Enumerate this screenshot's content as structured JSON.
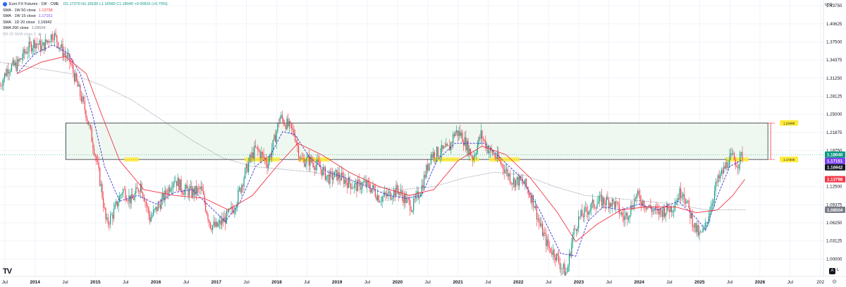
{
  "legend": {
    "symbol": "Euro FX Futures · 1W · CME",
    "ohlc": "O1.17270 H1.18100 L1.16560 C1.18040 +0.00815 (+0.70%)",
    "indicators": [
      {
        "name": "SMA · 1W 50 close",
        "value": "1.13798",
        "color": "#f23645"
      },
      {
        "name": "SMA · 1W 15 close",
        "value": "1.17151",
        "color": "#7b3ff2"
      },
      {
        "name": "SMA · 1D 20 close",
        "value": "1.16942",
        "color": "#131722"
      },
      {
        "name": "SMA 200 close",
        "value": "1.08504",
        "color": "#787b86"
      },
      {
        "name": "BB 20 SMA close 2",
        "value": "",
        "color": "#b2b5be"
      }
    ]
  },
  "currency": "USD",
  "tv_logo": "TV",
  "corner": {
    "auto_label": "A",
    "log_label": "L"
  },
  "chart_data": {
    "type": "candlestick",
    "title": "Euro FX Futures · 1W · CME",
    "xlabel": "",
    "ylabel": "",
    "ylim": [
      0.9,
      1.45
    ],
    "y_ticks": [
      0.9375,
      0.96875,
      1.0,
      1.03125,
      1.0625,
      1.09375,
      1.125,
      1.15625,
      1.1875,
      1.21875,
      1.25,
      1.28125,
      1.3125,
      1.34375,
      1.375,
      1.40625,
      1.4375
    ],
    "y_tick_labels": [
      "0.93750",
      "0.96875",
      "1.00000",
      "1.03125",
      "1.06250",
      "1.09375",
      "1.12500",
      "1.15625",
      "1.18750",
      "1.21875",
      "1.25000",
      "1.28125",
      "1.31250",
      "1.34375",
      "1.37500",
      "1.40625",
      "1.43750"
    ],
    "x_range": [
      2013.42,
      2027.05
    ],
    "x_ticks": [
      {
        "t": 2013.5,
        "label": "Jul"
      },
      {
        "t": 2014.0,
        "label": "2014"
      },
      {
        "t": 2014.5,
        "label": "Jul"
      },
      {
        "t": 2015.0,
        "label": "2015"
      },
      {
        "t": 2015.5,
        "label": "Jul"
      },
      {
        "t": 2016.0,
        "label": "2016"
      },
      {
        "t": 2016.5,
        "label": "Jul"
      },
      {
        "t": 2017.0,
        "label": "2017"
      },
      {
        "t": 2017.5,
        "label": "Jul"
      },
      {
        "t": 2018.0,
        "label": "2018"
      },
      {
        "t": 2018.5,
        "label": "Jul"
      },
      {
        "t": 2019.0,
        "label": "2019"
      },
      {
        "t": 2019.5,
        "label": "Jul"
      },
      {
        "t": 2020.0,
        "label": "2020"
      },
      {
        "t": 2020.5,
        "label": "Jul"
      },
      {
        "t": 2021.0,
        "label": "2021"
      },
      {
        "t": 2021.5,
        "label": "Jul"
      },
      {
        "t": 2022.0,
        "label": "2022"
      },
      {
        "t": 2022.5,
        "label": "Jul"
      },
      {
        "t": 2023.0,
        "label": "2023"
      },
      {
        "t": 2023.5,
        "label": "Jul"
      },
      {
        "t": 2024.0,
        "label": "2024"
      },
      {
        "t": 2024.5,
        "label": "Jul"
      },
      {
        "t": 2025.0,
        "label": "2025"
      },
      {
        "t": 2025.5,
        "label": "Jul"
      },
      {
        "t": 2026.0,
        "label": "2026"
      },
      {
        "t": 2026.5,
        "label": "Jul"
      },
      {
        "t": 2027.0,
        "label": "202"
      }
    ],
    "price_path": [
      [
        2013.42,
        1.3
      ],
      [
        2013.55,
        1.33
      ],
      [
        2013.7,
        1.335
      ],
      [
        2013.85,
        1.36
      ],
      [
        2014.0,
        1.375
      ],
      [
        2014.12,
        1.365
      ],
      [
        2014.3,
        1.39
      ],
      [
        2014.45,
        1.36
      ],
      [
        2014.58,
        1.34
      ],
      [
        2014.7,
        1.3
      ],
      [
        2014.85,
        1.25
      ],
      [
        2015.0,
        1.18
      ],
      [
        2015.1,
        1.12
      ],
      [
        2015.18,
        1.06
      ],
      [
        2015.3,
        1.08
      ],
      [
        2015.45,
        1.12
      ],
      [
        2015.6,
        1.1
      ],
      [
        2015.75,
        1.13
      ],
      [
        2015.9,
        1.07
      ],
      [
        2016.0,
        1.085
      ],
      [
        2016.15,
        1.11
      ],
      [
        2016.3,
        1.14
      ],
      [
        2016.45,
        1.12
      ],
      [
        2016.6,
        1.115
      ],
      [
        2016.75,
        1.12
      ],
      [
        2016.9,
        1.06
      ],
      [
        2017.0,
        1.055
      ],
      [
        2017.15,
        1.07
      ],
      [
        2017.3,
        1.09
      ],
      [
        2017.45,
        1.14
      ],
      [
        2017.55,
        1.17
      ],
      [
        2017.65,
        1.19
      ],
      [
        2017.75,
        1.18
      ],
      [
        2017.85,
        1.165
      ],
      [
        2017.95,
        1.2
      ],
      [
        2018.05,
        1.245
      ],
      [
        2018.15,
        1.235
      ],
      [
        2018.3,
        1.215
      ],
      [
        2018.4,
        1.17
      ],
      [
        2018.55,
        1.17
      ],
      [
        2018.7,
        1.16
      ],
      [
        2018.85,
        1.14
      ],
      [
        2019.0,
        1.145
      ],
      [
        2019.15,
        1.135
      ],
      [
        2019.3,
        1.125
      ],
      [
        2019.45,
        1.13
      ],
      [
        2019.6,
        1.12
      ],
      [
        2019.7,
        1.105
      ],
      [
        2019.85,
        1.11
      ],
      [
        2020.0,
        1.12
      ],
      [
        2020.15,
        1.1
      ],
      [
        2020.25,
        1.09
      ],
      [
        2020.4,
        1.125
      ],
      [
        2020.55,
        1.18
      ],
      [
        2020.7,
        1.185
      ],
      [
        2020.85,
        1.19
      ],
      [
        2020.95,
        1.22
      ],
      [
        2021.05,
        1.215
      ],
      [
        2021.15,
        1.195
      ],
      [
        2021.25,
        1.175
      ],
      [
        2021.38,
        1.215
      ],
      [
        2021.5,
        1.19
      ],
      [
        2021.6,
        1.18
      ],
      [
        2021.75,
        1.16
      ],
      [
        2021.9,
        1.135
      ],
      [
        2022.0,
        1.135
      ],
      [
        2022.1,
        1.13
      ],
      [
        2022.25,
        1.1
      ],
      [
        2022.35,
        1.06
      ],
      [
        2022.5,
        1.02
      ],
      [
        2022.6,
        1.01
      ],
      [
        2022.72,
        0.985
      ],
      [
        2022.8,
        0.975
      ],
      [
        2022.9,
        1.04
      ],
      [
        2023.0,
        1.07
      ],
      [
        2023.1,
        1.08
      ],
      [
        2023.25,
        1.095
      ],
      [
        2023.35,
        1.1
      ],
      [
        2023.5,
        1.1
      ],
      [
        2023.6,
        1.095
      ],
      [
        2023.75,
        1.07
      ],
      [
        2023.85,
        1.085
      ],
      [
        2023.95,
        1.11
      ],
      [
        2024.05,
        1.1
      ],
      [
        2024.15,
        1.09
      ],
      [
        2024.3,
        1.08
      ],
      [
        2024.45,
        1.085
      ],
      [
        2024.55,
        1.09
      ],
      [
        2024.65,
        1.11
      ],
      [
        2024.72,
        1.12
      ],
      [
        2024.82,
        1.085
      ],
      [
        2024.92,
        1.055
      ],
      [
        2025.0,
        1.04
      ],
      [
        2025.08,
        1.05
      ],
      [
        2025.18,
        1.09
      ],
      [
        2025.28,
        1.13
      ],
      [
        2025.38,
        1.15
      ],
      [
        2025.48,
        1.17
      ],
      [
        2025.55,
        1.175
      ],
      [
        2025.62,
        1.165
      ],
      [
        2025.7,
        1.18
      ]
    ],
    "series": [
      {
        "name": "SMA 1W 15 close",
        "color": "#3d36d9",
        "dash": "3,1.5",
        "points": [
          [
            2013.7,
            1.32
          ],
          [
            2014.0,
            1.355
          ],
          [
            2014.3,
            1.37
          ],
          [
            2014.55,
            1.355
          ],
          [
            2014.75,
            1.32
          ],
          [
            2014.95,
            1.25
          ],
          [
            2015.15,
            1.16
          ],
          [
            2015.4,
            1.1
          ],
          [
            2015.7,
            1.11
          ],
          [
            2016.0,
            1.095
          ],
          [
            2016.3,
            1.115
          ],
          [
            2016.6,
            1.12
          ],
          [
            2016.9,
            1.09
          ],
          [
            2017.15,
            1.065
          ],
          [
            2017.4,
            1.1
          ],
          [
            2017.65,
            1.16
          ],
          [
            2017.9,
            1.18
          ],
          [
            2018.1,
            1.22
          ],
          [
            2018.3,
            1.215
          ],
          [
            2018.55,
            1.175
          ],
          [
            2018.85,
            1.15
          ],
          [
            2019.15,
            1.14
          ],
          [
            2019.5,
            1.125
          ],
          [
            2019.85,
            1.11
          ],
          [
            2020.15,
            1.105
          ],
          [
            2020.4,
            1.11
          ],
          [
            2020.65,
            1.17
          ],
          [
            2020.95,
            1.2
          ],
          [
            2021.15,
            1.2
          ],
          [
            2021.45,
            1.2
          ],
          [
            2021.75,
            1.17
          ],
          [
            2022.05,
            1.14
          ],
          [
            2022.35,
            1.085
          ],
          [
            2022.7,
            1.01
          ],
          [
            2022.95,
            1.005
          ],
          [
            2023.15,
            1.065
          ],
          [
            2023.4,
            1.09
          ],
          [
            2023.7,
            1.085
          ],
          [
            2024.0,
            1.095
          ],
          [
            2024.3,
            1.085
          ],
          [
            2024.65,
            1.1
          ],
          [
            2024.95,
            1.07
          ],
          [
            2025.1,
            1.05
          ],
          [
            2025.3,
            1.11
          ],
          [
            2025.5,
            1.16
          ],
          [
            2025.7,
            1.171
          ]
        ]
      },
      {
        "name": "SMA 1W 50 close",
        "color": "#f23645",
        "dash": "",
        "points": [
          [
            2013.7,
            1.32
          ],
          [
            2014.1,
            1.34
          ],
          [
            2014.5,
            1.35
          ],
          [
            2014.85,
            1.32
          ],
          [
            2015.1,
            1.25
          ],
          [
            2015.4,
            1.17
          ],
          [
            2015.8,
            1.12
          ],
          [
            2016.3,
            1.11
          ],
          [
            2016.8,
            1.105
          ],
          [
            2017.2,
            1.085
          ],
          [
            2017.6,
            1.11
          ],
          [
            2018.0,
            1.16
          ],
          [
            2018.35,
            1.2
          ],
          [
            2018.75,
            1.18
          ],
          [
            2019.2,
            1.15
          ],
          [
            2019.7,
            1.125
          ],
          [
            2020.2,
            1.11
          ],
          [
            2020.6,
            1.12
          ],
          [
            2021.0,
            1.17
          ],
          [
            2021.4,
            1.195
          ],
          [
            2021.8,
            1.18
          ],
          [
            2022.2,
            1.14
          ],
          [
            2022.65,
            1.08
          ],
          [
            2022.95,
            1.03
          ],
          [
            2023.3,
            1.06
          ],
          [
            2023.7,
            1.085
          ],
          [
            2024.1,
            1.09
          ],
          [
            2024.6,
            1.09
          ],
          [
            2024.95,
            1.08
          ],
          [
            2025.3,
            1.085
          ],
          [
            2025.55,
            1.11
          ],
          [
            2025.75,
            1.138
          ]
        ]
      },
      {
        "name": "SMA 200 close",
        "color": "#787b86",
        "dash": "1,1.5",
        "points": [
          [
            2013.42,
            1.34
          ],
          [
            2014.0,
            1.33
          ],
          [
            2014.6,
            1.32
          ],
          [
            2015.1,
            1.3
          ],
          [
            2015.6,
            1.275
          ],
          [
            2016.1,
            1.24
          ],
          [
            2016.6,
            1.205
          ],
          [
            2017.1,
            1.175
          ],
          [
            2017.6,
            1.16
          ],
          [
            2018.1,
            1.155
          ],
          [
            2018.6,
            1.15
          ],
          [
            2019.1,
            1.14
          ],
          [
            2019.6,
            1.125
          ],
          [
            2020.1,
            1.12
          ],
          [
            2020.6,
            1.125
          ],
          [
            2021.1,
            1.14
          ],
          [
            2021.6,
            1.15
          ],
          [
            2022.1,
            1.145
          ],
          [
            2022.6,
            1.125
          ],
          [
            2023.1,
            1.11
          ],
          [
            2023.6,
            1.105
          ],
          [
            2024.1,
            1.1
          ],
          [
            2024.6,
            1.095
          ],
          [
            2025.1,
            1.085
          ],
          [
            2025.75,
            1.085
          ]
        ]
      }
    ],
    "zone": {
      "top": 1.235,
      "bottom": 1.172,
      "t_start": 2014.51,
      "t_end": 2026.13,
      "top_label": "1.23480",
      "bottom_label": "1.17200"
    },
    "highlights": [
      {
        "t_start": 2015.48,
        "t_end": 2015.72,
        "y": 1.172
      },
      {
        "t_start": 2017.47,
        "t_end": 2018.05,
        "y": 1.172
      },
      {
        "t_start": 2018.36,
        "t_end": 2018.88,
        "y": 1.172
      },
      {
        "t_start": 2020.59,
        "t_end": 2021.02,
        "y": 1.172
      },
      {
        "t_start": 2021.21,
        "t_end": 2021.35,
        "y": 1.172
      },
      {
        "t_start": 2021.52,
        "t_end": 2022.02,
        "y": 1.172
      },
      {
        "t_start": 2025.43,
        "t_end": 2025.81,
        "y": 1.172
      }
    ],
    "price_labels": [
      {
        "value": 1.1804,
        "label": "1.18040",
        "bg": "#089981",
        "fg": "#ffffff"
      },
      {
        "value": 1.17151,
        "label": "1.17151",
        "bg": "#7b3ff2",
        "fg": "#ffffff"
      },
      {
        "value": 1.16942,
        "label": "1.16942",
        "bg": "#131722",
        "fg": "#ffffff"
      },
      {
        "value": 1.13798,
        "label": "1.13798",
        "bg": "#f23645",
        "fg": "#ffffff"
      },
      {
        "value": 1.08504,
        "label": "1.08504",
        "bg": "#787b86",
        "fg": "#ffffff"
      }
    ],
    "colors": {
      "up": "#089981",
      "down": "#f23645",
      "grid": "#f0f3fa",
      "zone_fill": "#e8f5e9",
      "highlight": "#ffeb3b"
    }
  }
}
